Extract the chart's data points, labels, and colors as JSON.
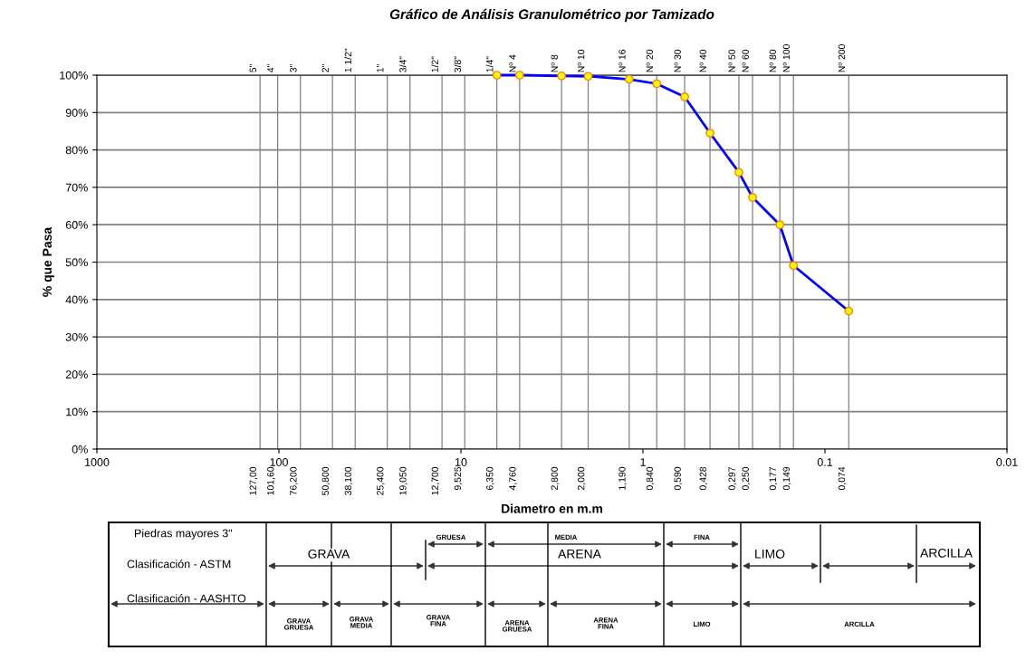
{
  "chart_data": {
    "type": "line",
    "title": "Gráfico de Análisis Granulométrico por Tamizado",
    "xlabel": "Diametro en m.m",
    "ylabel": "% que Pasa",
    "log": "x",
    "grid": "y",
    "marker": "circle",
    "line_style": "solid",
    "x": [
      6.35,
      4.76,
      2.8,
      2.0,
      1.19,
      0.84,
      0.59,
      0.428,
      0.297,
      0.25,
      0.177,
      0.149,
      0.074
    ],
    "series": [
      {
        "color": "#0000ff",
        "values": [
          100,
          100,
          99.8,
          99.7,
          98.9,
          97.7,
          94.2,
          84.5,
          74.0,
          67.3,
          60.0,
          49.1,
          36.9
        ]
      }
    ],
    "xlim": [
      1000,
      0.01
    ],
    "xticks": [
      1000,
      100,
      10,
      1,
      0.1,
      0.01
    ],
    "ylim": [
      0,
      100
    ],
    "yticks": [
      {
        "value": 0,
        "label": "0%"
      },
      {
        "value": 10,
        "label": "10%"
      },
      {
        "value": 20,
        "label": "20%"
      },
      {
        "value": 30,
        "label": "30%"
      },
      {
        "value": 40,
        "label": "40%"
      },
      {
        "value": 50,
        "label": "50%"
      },
      {
        "value": 60,
        "label": "60%"
      },
      {
        "value": 70,
        "label": "70%"
      },
      {
        "value": 80,
        "label": "80%"
      },
      {
        "value": 90,
        "label": "90%"
      },
      {
        "value": 100,
        "label": "100%"
      }
    ],
    "ref_lines": [
      {
        "axis": "x",
        "value": 127,
        "label": "127,00",
        "color": "#808080"
      },
      {
        "axis": "x",
        "value": 101.6,
        "label": "101,60",
        "color": "#808080"
      },
      {
        "axis": "x",
        "value": 76.2,
        "label": "76,200",
        "color": "#808080"
      },
      {
        "axis": "x",
        "value": 50.8,
        "label": "50,800",
        "color": "#808080"
      },
      {
        "axis": "x",
        "value": 38.1,
        "label": "38,100",
        "color": "#808080"
      },
      {
        "axis": "x",
        "value": 25.4,
        "label": "25,400",
        "color": "#808080"
      },
      {
        "axis": "x",
        "value": 19.05,
        "label": "19,050",
        "color": "#808080"
      },
      {
        "axis": "x",
        "value": 12.7,
        "label": "12,700",
        "color": "#808080"
      },
      {
        "axis": "x",
        "value": 9.525,
        "label": "9,525",
        "color": "#808080"
      },
      {
        "axis": "x",
        "value": 6.35,
        "label": "6,350",
        "color": "#808080"
      },
      {
        "axis": "x",
        "value": 4.76,
        "label": "4,760",
        "color": "#808080"
      },
      {
        "axis": "x",
        "value": 2.8,
        "label": "2,800",
        "color": "#808080"
      },
      {
        "axis": "x",
        "value": 2.0,
        "label": "2,000",
        "color": "#808080"
      },
      {
        "axis": "x",
        "value": 1.19,
        "label": "1,190",
        "color": "#808080"
      },
      {
        "axis": "x",
        "value": 0.84,
        "label": "0,840",
        "color": "#808080"
      },
      {
        "axis": "x",
        "value": 0.59,
        "label": "0,590",
        "color": "#808080"
      },
      {
        "axis": "x",
        "value": 0.428,
        "label": "0,428",
        "color": "#808080"
      },
      {
        "axis": "x",
        "value": 0.297,
        "label": "0,297",
        "color": "#808080"
      },
      {
        "axis": "x",
        "value": 0.25,
        "label": "0,250",
        "color": "#808080"
      },
      {
        "axis": "x",
        "value": 0.177,
        "label": "0,177",
        "color": "#808080"
      },
      {
        "axis": "x",
        "value": 0.149,
        "label": "0,149",
        "color": "#808080"
      },
      {
        "axis": "x",
        "value": 0.074,
        "label": "0,074",
        "color": "#808080"
      }
    ],
    "annotations": [
      {
        "text": "5\"",
        "x": 127,
        "y": 100
      },
      {
        "text": "4\"",
        "x": 101.6,
        "y": 100
      },
      {
        "text": "3\"",
        "x": 76.2,
        "y": 100
      },
      {
        "text": "2\"",
        "x": 50.8,
        "y": 100
      },
      {
        "text": "1 1/2\"",
        "x": 38.1,
        "y": 100
      },
      {
        "text": "1\"",
        "x": 25.4,
        "y": 100
      },
      {
        "text": "3/4\"",
        "x": 19.05,
        "y": 100
      },
      {
        "text": "1/2\"",
        "x": 12.7,
        "y": 100
      },
      {
        "text": "3/8\"",
        "x": 9.525,
        "y": 100
      },
      {
        "text": "1/4\"",
        "x": 6.35,
        "y": 100
      },
      {
        "text": "Nº 4",
        "x": 4.76,
        "y": 100
      },
      {
        "text": "Nº 8",
        "x": 2.8,
        "y": 100
      },
      {
        "text": "Nº 10",
        "x": 2.0,
        "y": 100
      },
      {
        "text": "Nº 16",
        "x": 1.19,
        "y": 100
      },
      {
        "text": "Nº 20",
        "x": 0.84,
        "y": 100
      },
      {
        "text": "Nº 30",
        "x": 0.59,
        "y": 100
      },
      {
        "text": "Nº 40",
        "x": 0.428,
        "y": 100
      },
      {
        "text": "Nº 50",
        "x": 0.297,
        "y": 100
      },
      {
        "text": "Nº 60",
        "x": 0.25,
        "y": 100
      },
      {
        "text": "Nº 80",
        "x": 0.177,
        "y": 100
      },
      {
        "text": "Nº 100",
        "x": 0.149,
        "y": 100
      },
      {
        "text": "Nº 200",
        "x": 0.074,
        "y": 100
      },
      "Piedras mayores 3\"",
      "Clasificación - ASTM",
      "Clasificación - AASHTO",
      "GRUESA",
      "MEDIA",
      "FINA",
      "GRAVA",
      "ARENA",
      "LIMO",
      "ARCILLA",
      "GRAVA\nGRUESA",
      "GRAVA\nMEDIA",
      "GRAVA\nFINA",
      "ARENA\nGRUESA",
      "ARENA\nFINA",
      "LIMO",
      "ARCILLA"
    ]
  }
}
